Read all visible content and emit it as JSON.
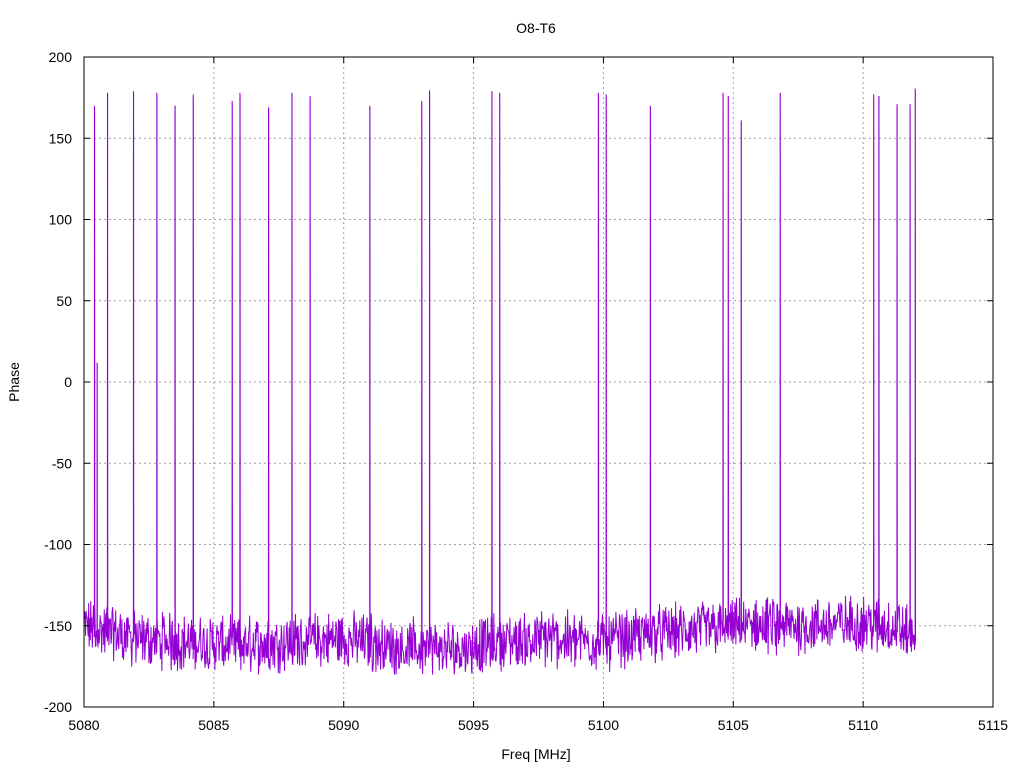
{
  "chart_data": {
    "type": "line",
    "title": "O8-T6",
    "xlabel": "Freq [MHz]",
    "ylabel": "Phase",
    "xlim": [
      5080,
      5115
    ],
    "ylim": [
      -200,
      200
    ],
    "xticks": [
      5080,
      5085,
      5090,
      5095,
      5100,
      5105,
      5110,
      5115
    ],
    "yticks": [
      -200,
      -150,
      -100,
      -50,
      0,
      50,
      100,
      150,
      200
    ],
    "grid": true,
    "legend": "none",
    "color": "#9400d3",
    "x_range": [
      5080,
      5112
    ],
    "baseline": {
      "x": [
        5080,
        5082,
        5084,
        5086,
        5088,
        5090,
        5092,
        5094,
        5096,
        5098,
        5100,
        5102,
        5104,
        5106,
        5108,
        5110,
        5111,
        5112
      ],
      "y": [
        -150,
        -158,
        -160,
        -162,
        -160,
        -158,
        -163,
        -165,
        -160,
        -158,
        -160,
        -155,
        -152,
        -150,
        -150,
        -148,
        -150,
        -155
      ]
    },
    "spikes": [
      {
        "x": 5080.4,
        "top": 170
      },
      {
        "x": 5080.5,
        "top": 12
      },
      {
        "x": 5080.9,
        "top": 178
      },
      {
        "x": 5081.9,
        "top": 179
      },
      {
        "x": 5082.8,
        "top": 178
      },
      {
        "x": 5083.5,
        "top": 170
      },
      {
        "x": 5084.2,
        "top": 177
      },
      {
        "x": 5085.7,
        "top": 173
      },
      {
        "x": 5086.0,
        "top": 178
      },
      {
        "x": 5087.1,
        "top": 169
      },
      {
        "x": 5088.0,
        "top": 178
      },
      {
        "x": 5088.7,
        "top": 176
      },
      {
        "x": 5091.0,
        "top": 170
      },
      {
        "x": 5093.0,
        "top": 173
      },
      {
        "x": 5093.3,
        "top": 179
      },
      {
        "x": 5095.7,
        "top": 179
      },
      {
        "x": 5096.0,
        "top": 178
      },
      {
        "x": 5099.8,
        "top": 178
      },
      {
        "x": 5100.1,
        "top": 177
      },
      {
        "x": 5101.8,
        "top": 170
      },
      {
        "x": 5104.6,
        "top": 178
      },
      {
        "x": 5104.8,
        "top": 176
      },
      {
        "x": 5105.3,
        "top": 161
      },
      {
        "x": 5106.8,
        "top": 178
      },
      {
        "x": 5110.4,
        "top": 177
      },
      {
        "x": 5110.6,
        "top": 176
      },
      {
        "x": 5111.3,
        "top": 171
      },
      {
        "x": 5111.8,
        "top": 171
      },
      {
        "x": 5112.0,
        "top": 180
      }
    ]
  }
}
